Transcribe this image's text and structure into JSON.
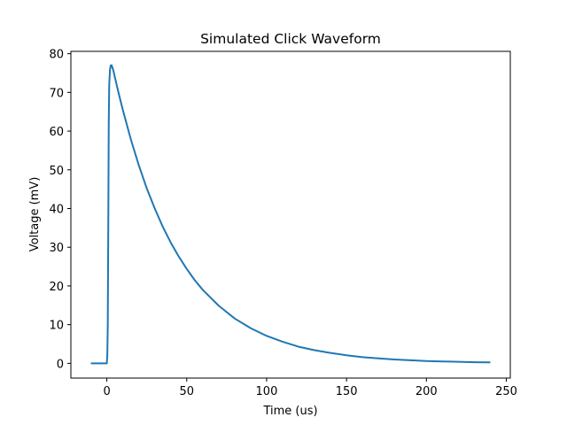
{
  "chart_data": {
    "type": "line",
    "title": "Simulated Click Waveform",
    "xlabel": "Time (us)",
    "ylabel": "Voltage (mV)",
    "xlim": [
      -22.5,
      252.5
    ],
    "ylim": [
      -3.8,
      80.6
    ],
    "grid": false,
    "xticks": [
      0,
      50,
      100,
      150,
      200,
      250
    ],
    "yticks": [
      0,
      10,
      20,
      30,
      40,
      50,
      60,
      70,
      80
    ],
    "series": [
      {
        "color": "#1f77b4",
        "points": [
          [
            -10,
            0
          ],
          [
            0,
            0
          ],
          [
            0.3,
            2
          ],
          [
            0.6,
            10
          ],
          [
            0.9,
            35
          ],
          [
            1.2,
            62
          ],
          [
            1.5,
            72
          ],
          [
            2,
            76
          ],
          [
            2.5,
            77
          ],
          [
            3,
            77
          ],
          [
            4,
            75.8
          ],
          [
            5,
            74
          ],
          [
            7.5,
            69.6
          ],
          [
            10,
            65.5
          ],
          [
            15,
            57.9
          ],
          [
            20,
            51.2
          ],
          [
            25,
            45.2
          ],
          [
            30,
            40
          ],
          [
            35,
            35.3
          ],
          [
            40,
            31.2
          ],
          [
            45,
            27.6
          ],
          [
            50,
            24.4
          ],
          [
            55,
            21.5
          ],
          [
            60,
            19
          ],
          [
            70,
            14.9
          ],
          [
            80,
            11.6
          ],
          [
            90,
            9.1
          ],
          [
            100,
            7.1
          ],
          [
            110,
            5.6
          ],
          [
            120,
            4.3
          ],
          [
            130,
            3.4
          ],
          [
            140,
            2.7
          ],
          [
            150,
            2.1
          ],
          [
            160,
            1.6
          ],
          [
            170,
            1.3
          ],
          [
            180,
            1.0
          ],
          [
            190,
            0.8
          ],
          [
            200,
            0.6
          ],
          [
            210,
            0.5
          ],
          [
            220,
            0.4
          ],
          [
            230,
            0.3
          ],
          [
            240,
            0.25
          ]
        ]
      }
    ]
  }
}
